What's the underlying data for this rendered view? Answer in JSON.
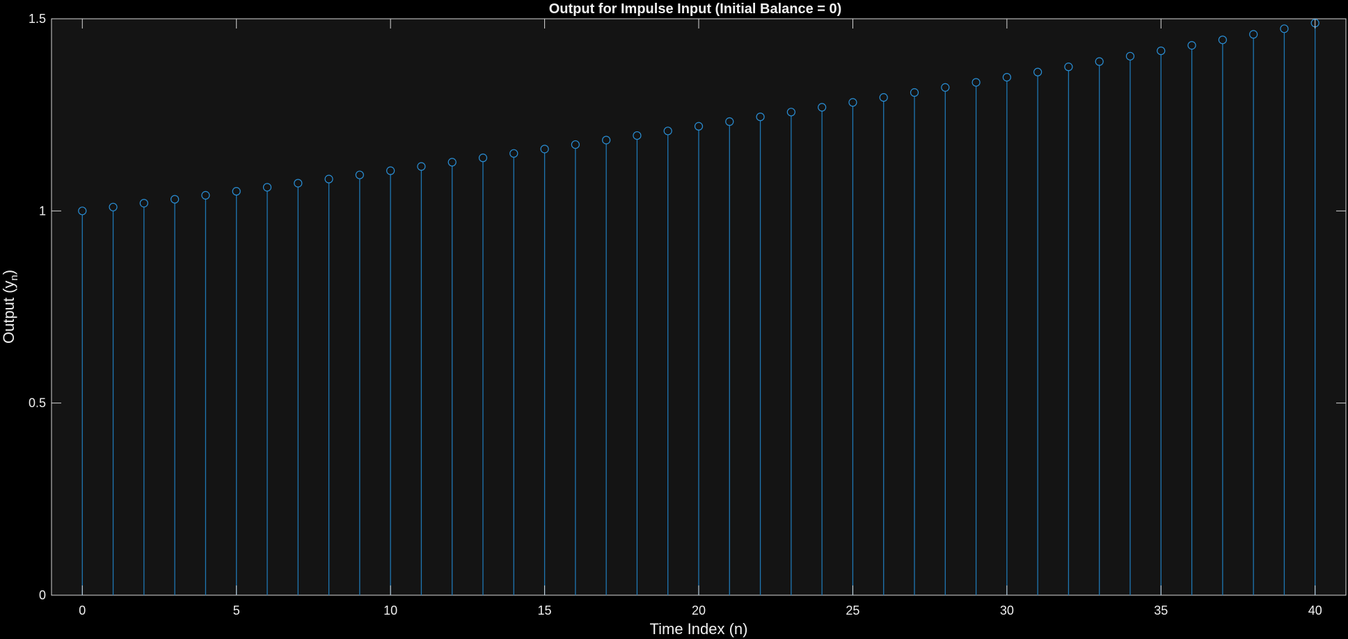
{
  "chart_data": {
    "type": "stem",
    "title": "Output for Impulse Input (Initial Balance = 0)",
    "xlabel": "Time Index (n)",
    "ylabel_main": "Output  (y",
    "ylabel_sub": "n",
    "ylabel_close": ")",
    "xlim": [
      -1,
      41
    ],
    "ylim": [
      0,
      1.5
    ],
    "xticks": [
      0,
      5,
      10,
      15,
      20,
      25,
      30,
      35,
      40
    ],
    "yticks": [
      0,
      0.5,
      1,
      1.5
    ],
    "xtick_labels": [
      "0",
      "5",
      "10",
      "15",
      "20",
      "25",
      "30",
      "35",
      "40"
    ],
    "ytick_labels": [
      "0",
      "0.5",
      "1",
      "1.5"
    ],
    "growth_rate": 0.01,
    "x": [
      0,
      1,
      2,
      3,
      4,
      5,
      6,
      7,
      8,
      9,
      10,
      11,
      12,
      13,
      14,
      15,
      16,
      17,
      18,
      19,
      20,
      21,
      22,
      23,
      24,
      25,
      26,
      27,
      28,
      29,
      30,
      31,
      32,
      33,
      34,
      35,
      36,
      37,
      38,
      39,
      40
    ],
    "values": [
      1.0,
      1.01,
      1.0201,
      1.0303,
      1.0406,
      1.051,
      1.0615,
      1.0721,
      1.0829,
      1.0937,
      1.1046,
      1.1157,
      1.1268,
      1.1381,
      1.1495,
      1.161,
      1.1726,
      1.1843,
      1.1961,
      1.2081,
      1.2202,
      1.2324,
      1.2447,
      1.2572,
      1.2697,
      1.2824,
      1.2953,
      1.3082,
      1.3213,
      1.3345,
      1.3478,
      1.3613,
      1.3749,
      1.3887,
      1.4026,
      1.4166,
      1.4308,
      1.4451,
      1.4595,
      1.4741,
      1.4889
    ],
    "grid": false,
    "colors": {
      "background": "#000000",
      "axes_background": "#141414",
      "axes_border": "#d9d9d9",
      "series": "#1f77b4",
      "marker": "#2a8fd6",
      "text": "#f0f0f0"
    }
  }
}
